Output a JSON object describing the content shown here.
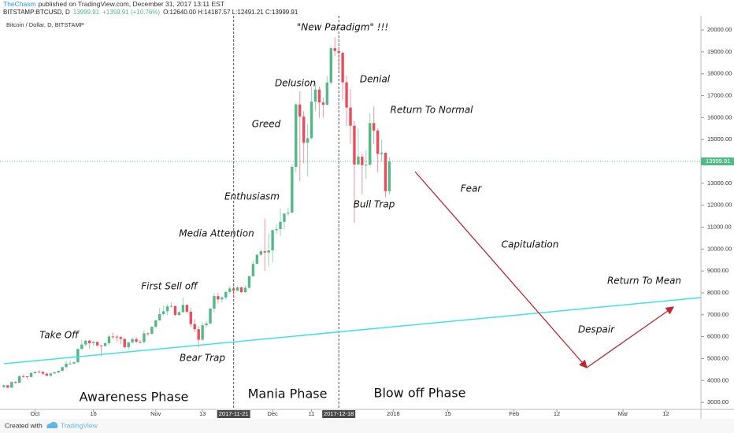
{
  "header": {
    "author": "TheChasm",
    "published": "published on TradingView.com, December 31, 2017 13:11 EST",
    "symbol": "BITSTAMP:BTCUSD, D",
    "last": "13999.91",
    "change": "+1359.91 (+10.76%)",
    "ohlc": "O:12640.00 H:14187.57 L:12491.21 C:13999.91"
  },
  "footer": {
    "created": "Created with",
    "brand": "TradingView"
  },
  "chart_data": {
    "type": "candlestick",
    "title": "Bitcoin / Dollar, D, BITSTAMP",
    "up_color": "#53b987",
    "down_color": "#eb4d5c",
    "x": [
      "2017-09-23",
      "2017-09-24",
      "2017-09-25",
      "2017-09-26",
      "2017-09-27",
      "2017-09-28",
      "2017-09-29",
      "2017-09-30",
      "2017-10-01",
      "2017-10-02",
      "2017-10-03",
      "2017-10-04",
      "2017-10-05",
      "2017-10-06",
      "2017-10-07",
      "2017-10-08",
      "2017-10-09",
      "2017-10-10",
      "2017-10-11",
      "2017-10-12",
      "2017-10-13",
      "2017-10-14",
      "2017-10-15",
      "2017-10-16",
      "2017-10-17",
      "2017-10-18",
      "2017-10-19",
      "2017-10-20",
      "2017-10-21",
      "2017-10-22",
      "2017-10-23",
      "2017-10-24",
      "2017-10-25",
      "2017-10-26",
      "2017-10-27",
      "2017-10-28",
      "2017-10-29",
      "2017-10-30",
      "2017-10-31",
      "2017-11-01",
      "2017-11-02",
      "2017-11-03",
      "2017-11-04",
      "2017-11-05",
      "2017-11-06",
      "2017-11-07",
      "2017-11-08",
      "2017-11-09",
      "2017-11-10",
      "2017-11-11",
      "2017-11-12",
      "2017-11-13",
      "2017-11-14",
      "2017-11-15",
      "2017-11-16",
      "2017-11-17",
      "2017-11-18",
      "2017-11-19",
      "2017-11-20",
      "2017-11-21",
      "2017-11-22",
      "2017-11-23",
      "2017-11-24",
      "2017-11-25",
      "2017-11-26",
      "2017-11-27",
      "2017-11-28",
      "2017-11-29",
      "2017-11-30",
      "2017-12-01",
      "2017-12-02",
      "2017-12-03",
      "2017-12-04",
      "2017-12-05",
      "2017-12-06",
      "2017-12-07",
      "2017-12-08",
      "2017-12-09",
      "2017-12-10",
      "2017-12-11",
      "2017-12-12",
      "2017-12-13",
      "2017-12-14",
      "2017-12-15",
      "2017-12-16",
      "2017-12-17",
      "2017-12-18",
      "2017-12-19",
      "2017-12-20",
      "2017-12-21",
      "2017-12-22",
      "2017-12-23",
      "2017-12-24",
      "2017-12-25",
      "2017-12-26",
      "2017-12-27",
      "2017-12-28",
      "2017-12-29",
      "2017-12-30",
      "2017-12-31"
    ],
    "ohlc": [
      [
        3700,
        3820,
        3650,
        3780
      ],
      [
        3780,
        3790,
        3640,
        3670
      ],
      [
        3670,
        3970,
        3660,
        3930
      ],
      [
        3930,
        3980,
        3850,
        3890
      ],
      [
        3890,
        4220,
        3880,
        4200
      ],
      [
        4200,
        4270,
        4120,
        4190
      ],
      [
        4190,
        4200,
        4030,
        4160
      ],
      [
        4160,
        4370,
        4150,
        4340
      ],
      [
        4340,
        4410,
        4290,
        4400
      ],
      [
        4400,
        4470,
        4360,
        4390
      ],
      [
        4390,
        4430,
        4250,
        4310
      ],
      [
        4310,
        4350,
        4180,
        4220
      ],
      [
        4220,
        4360,
        4150,
        4320
      ],
      [
        4320,
        4420,
        4300,
        4370
      ],
      [
        4370,
        4460,
        4310,
        4440
      ],
      [
        4440,
        4620,
        4420,
        4610
      ],
      [
        4610,
        4880,
        4550,
        4770
      ],
      [
        4770,
        4920,
        4730,
        4770
      ],
      [
        4770,
        4880,
        4740,
        4830
      ],
      [
        4830,
        5450,
        4820,
        5440
      ],
      [
        5440,
        5860,
        5400,
        5640
      ],
      [
        5640,
        5840,
        5570,
        5820
      ],
      [
        5820,
        5850,
        5450,
        5700
      ],
      [
        5700,
        5790,
        5570,
        5760
      ],
      [
        5760,
        5770,
        5540,
        5600
      ],
      [
        5600,
        5620,
        5100,
        5570
      ],
      [
        5570,
        5730,
        5550,
        5700
      ],
      [
        5700,
        6070,
        5620,
        6010
      ],
      [
        6010,
        6190,
        5900,
        6000
      ],
      [
        6000,
        6070,
        5750,
        5980
      ],
      [
        5980,
        6040,
        5650,
        5900
      ],
      [
        5900,
        5920,
        5460,
        5520
      ],
      [
        5520,
        5770,
        5400,
        5740
      ],
      [
        5740,
        5970,
        5690,
        5890
      ],
      [
        5890,
        6000,
        5700,
        5770
      ],
      [
        5770,
        5860,
        5680,
        5750
      ],
      [
        5750,
        6300,
        5700,
        6150
      ],
      [
        6150,
        6200,
        6030,
        6130
      ],
      [
        6130,
        6470,
        6100,
        6450
      ],
      [
        6450,
        6760,
        6380,
        6740
      ],
      [
        6740,
        7300,
        6740,
        7030
      ],
      [
        7030,
        7430,
        6960,
        7160
      ],
      [
        7160,
        7480,
        6980,
        7380
      ],
      [
        7380,
        7580,
        7330,
        7400
      ],
      [
        7400,
        7410,
        6950,
        6990
      ],
      [
        6990,
        7180,
        6960,
        7120
      ],
      [
        7120,
        7780,
        7090,
        7450
      ],
      [
        7450,
        7470,
        7060,
        7140
      ],
      [
        7140,
        7320,
        6440,
        6570
      ],
      [
        6570,
        6800,
        6200,
        6340
      ],
      [
        6340,
        6480,
        5500,
        5860
      ],
      [
        5860,
        6680,
        5810,
        6520
      ],
      [
        6520,
        6720,
        6420,
        6600
      ],
      [
        6600,
        7330,
        6580,
        7280
      ],
      [
        7280,
        7980,
        7100,
        7850
      ],
      [
        7850,
        8000,
        7530,
        7700
      ],
      [
        7700,
        7850,
        7560,
        7790
      ],
      [
        7790,
        8100,
        7680,
        8040
      ],
      [
        8040,
        8290,
        7970,
        8200
      ],
      [
        8200,
        8350,
        7800,
        8100
      ],
      [
        8100,
        8300,
        8080,
        8250
      ],
      [
        8250,
        8280,
        8000,
        8030
      ],
      [
        8030,
        8330,
        8000,
        8230
      ],
      [
        8230,
        8770,
        8180,
        8760
      ],
      [
        8760,
        9480,
        8750,
        9320
      ],
      [
        9320,
        9750,
        9320,
        9740
      ],
      [
        9740,
        10000,
        9680,
        9900
      ],
      [
        9900,
        11400,
        9000,
        9840
      ],
      [
        9840,
        10700,
        9200,
        9940
      ],
      [
        9940,
        10900,
        9400,
        10860
      ],
      [
        10860,
        11150,
        10690,
        10910
      ],
      [
        10910,
        11850,
        10600,
        11240
      ],
      [
        11240,
        11620,
        10900,
        11620
      ],
      [
        11620,
        11900,
        11500,
        11660
      ],
      [
        11660,
        13850,
        11660,
        13750
      ],
      [
        13750,
        16670,
        13500,
        16600
      ],
      [
        16600,
        17200,
        13100,
        16050
      ],
      [
        16050,
        16300,
        13900,
        14850
      ],
      [
        14850,
        15700,
        13300,
        15060
      ],
      [
        15060,
        17400,
        15000,
        16730
      ],
      [
        16730,
        17600,
        16300,
        17280
      ],
      [
        17280,
        17420,
        16000,
        16690
      ],
      [
        16690,
        16900,
        16000,
        16590
      ],
      [
        16590,
        17900,
        16550,
        17600
      ],
      [
        17600,
        19250,
        17500,
        19170
      ],
      [
        19170,
        19670,
        18800,
        19040
      ],
      [
        19040,
        19150,
        18100,
        18960
      ],
      [
        18960,
        19000,
        16800,
        17610
      ],
      [
        17610,
        17900,
        15600,
        16460
      ],
      [
        16460,
        17300,
        14800,
        15630
      ],
      [
        15630,
        15850,
        11200,
        13860
      ],
      [
        13860,
        15500,
        13860,
        14220
      ],
      [
        14220,
        14350,
        12500,
        13830
      ],
      [
        13830,
        14500,
        13200,
        13850
      ],
      [
        13850,
        16200,
        13800,
        15750
      ],
      [
        15750,
        16500,
        14800,
        15410
      ],
      [
        15410,
        15500,
        13500,
        14340
      ],
      [
        14340,
        15000,
        14000,
        14400
      ],
      [
        14400,
        14400,
        12360,
        12640
      ],
      [
        12640,
        14187.57,
        12491.21,
        13999.91
      ]
    ],
    "last_price": 13999.91,
    "xlim": [
      "2017-09-22",
      "2018-03-21"
    ],
    "xticks": [
      {
        "value": "2017-10-01",
        "label": "Oct"
      },
      {
        "value": "2017-10-16",
        "label": "16"
      },
      {
        "value": "2017-11-01",
        "label": "Nov"
      },
      {
        "value": "2017-11-13",
        "label": "13"
      },
      {
        "value": "2017-12-01",
        "label": "Dec"
      },
      {
        "value": "2017-12-11",
        "label": "11"
      },
      {
        "value": "2018-01-01",
        "label": "2018"
      },
      {
        "value": "2018-01-15",
        "label": "15"
      },
      {
        "value": "2018-02-01",
        "label": "Feb"
      },
      {
        "value": "2018-02-12",
        "label": "12"
      },
      {
        "value": "2018-03-01",
        "label": "Mar"
      },
      {
        "value": "2018-03-12",
        "label": "12"
      }
    ],
    "vertical_markers": [
      "2017-11-21",
      "2017-12-18"
    ],
    "ylim": [
      2680,
      20650
    ],
    "yticks": [
      {
        "value": 3000,
        "label": "3000.00"
      },
      {
        "value": 4000,
        "label": "4000.00"
      },
      {
        "value": 5000,
        "label": "5000.00"
      },
      {
        "value": 6000,
        "label": "6000.00"
      },
      {
        "value": 7000,
        "label": "7000.00"
      },
      {
        "value": 8000,
        "label": "8000.00"
      },
      {
        "value": 9000,
        "label": "9000.00"
      },
      {
        "value": 10000,
        "label": "10000.00"
      },
      {
        "value": 11000,
        "label": "11000.00"
      },
      {
        "value": 12000,
        "label": "12000.00"
      },
      {
        "value": 13000,
        "label": "13000.00"
      },
      {
        "value": 14000,
        "label": "14000.00"
      },
      {
        "value": 15000,
        "label": "15000.00"
      },
      {
        "value": 16000,
        "label": "16000.00"
      },
      {
        "value": 17000,
        "label": "17000.00"
      },
      {
        "value": 18000,
        "label": "18000.00"
      },
      {
        "value": 19000,
        "label": "19000.00"
      },
      {
        "value": 20000,
        "label": "20000.00"
      }
    ],
    "annotations": [
      "\"New Paradigm\" !!!",
      "Delusion",
      "Denial",
      "Greed",
      "Return To Normal",
      "Enthusiasm",
      "Bull Trap",
      "Fear",
      "Media Attention",
      "Capitulation",
      "First Sell off",
      "Return To Mean",
      "Take Off",
      "Despair",
      "Bear Trap"
    ],
    "phases": [
      "Awareness Phase",
      "Mania Phase",
      "Blow off Phase"
    ]
  }
}
